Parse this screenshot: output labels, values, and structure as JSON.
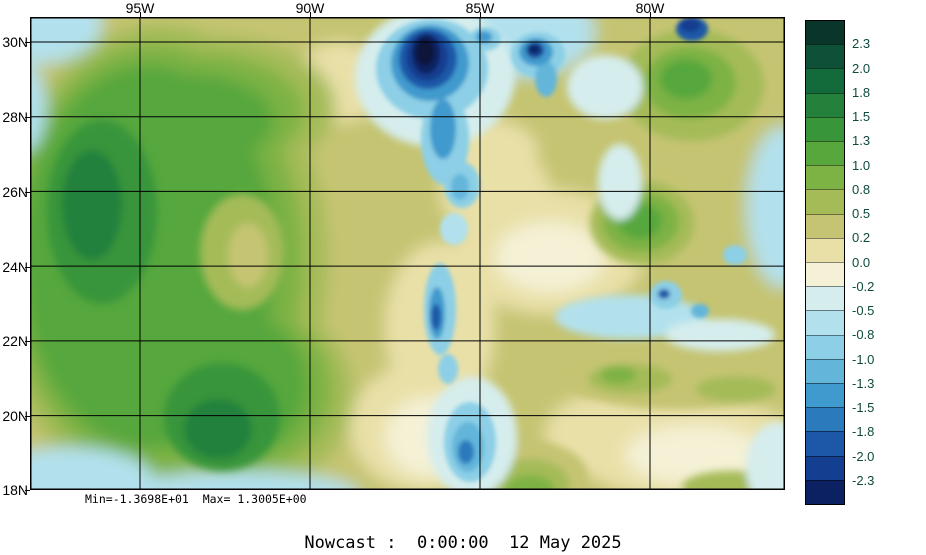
{
  "caption": {
    "text": "Nowcast :  0:00:00  12 May 2025"
  },
  "stats": {
    "text": "Min=-1.3698E+01  Max= 1.3005E+00"
  },
  "axes": {
    "lon_labels": [
      "95W",
      "90W",
      "85W",
      "80W"
    ],
    "lat_labels": [
      "30N",
      "28N",
      "26N",
      "24N",
      "22N",
      "20N",
      "18N"
    ]
  },
  "colorbar": {
    "labels": [
      "2.3",
      "2.0",
      "1.8",
      "1.5",
      "1.3",
      "1.0",
      "0.8",
      "0.5",
      "0.2",
      "0.0",
      "-0.2",
      "-0.5",
      "-0.8",
      "-1.0",
      "-1.3",
      "-1.5",
      "-1.8",
      "-2.0",
      "-2.3"
    ],
    "colors": [
      "#0a352a",
      "#0e5038",
      "#136b3c",
      "#23813c",
      "#38953a",
      "#57a73c",
      "#7db245",
      "#a4bb58",
      "#c5c472",
      "#e9e0a8",
      "#f4f1d6",
      "#d5eded",
      "#b2e1ed",
      "#8ccfe6",
      "#63b5da",
      "#3f9acd",
      "#2b7abc",
      "#1d58a8",
      "#143e90",
      "#0b2161"
    ],
    "label_color": "#0f4a3e"
  },
  "field": {
    "off_scale_low_color": "#071739"
  },
  "chart_data": {
    "type": "heatmap",
    "title": "Nowcast :  0:00:00  12 May 2025",
    "x_tick_labels": [
      "95W",
      "90W",
      "85W",
      "80W"
    ],
    "y_tick_labels": [
      "30N",
      "28N",
      "26N",
      "24N",
      "22N",
      "20N",
      "18N"
    ],
    "x_range": [
      98.2,
      76.0
    ],
    "y_range": [
      18.0,
      30.7
    ],
    "color_levels": [
      2.3,
      2.0,
      1.8,
      1.5,
      1.3,
      1.0,
      0.8,
      0.5,
      0.2,
      0.0,
      -0.2,
      -0.5,
      -0.8,
      -1.0,
      -1.3,
      -1.5,
      -1.8,
      -2.0,
      -2.3
    ],
    "field_min": -13.698,
    "field_max": 1.3005,
    "grid": true,
    "legend_position": "right"
  }
}
